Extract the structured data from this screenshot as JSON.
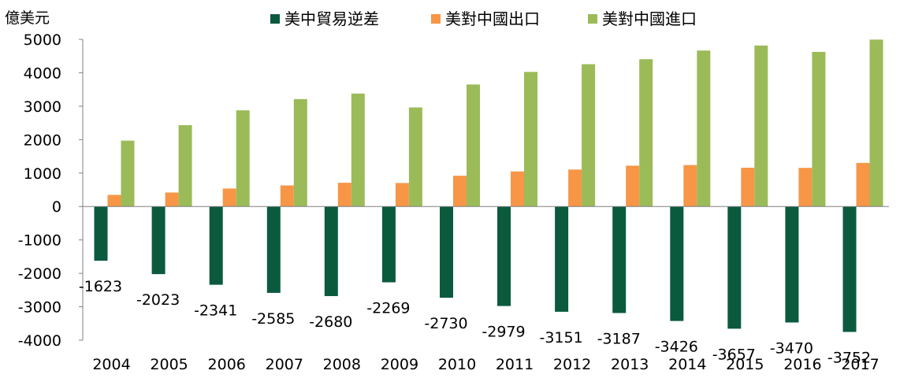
{
  "chart_data": {
    "type": "bar",
    "unit_label": "億美元",
    "categories": [
      "2004",
      "2005",
      "2006",
      "2007",
      "2008",
      "2009",
      "2010",
      "2011",
      "2012",
      "2013",
      "2014",
      "2015",
      "2016",
      "2017"
    ],
    "series": [
      {
        "name": "美中貿易逆差",
        "color": "#0b5a3d",
        "values": [
          -1623,
          -2023,
          -2341,
          -2585,
          -2680,
          -2269,
          -2730,
          -2979,
          -3151,
          -3187,
          -3426,
          -3657,
          -3470,
          -3752
        ],
        "labeled": true
      },
      {
        "name": "美對中國出口",
        "color": "#f79646",
        "values": [
          346,
          418,
          538,
          630,
          710,
          703,
          919,
          1049,
          1106,
          1220,
          1240,
          1160,
          1155,
          1303
        ],
        "labeled": false
      },
      {
        "name": "美對中國進口",
        "color": "#9bbb59",
        "values": [
          1970,
          2434,
          2878,
          3215,
          3378,
          2964,
          3649,
          4028,
          4257,
          4407,
          4666,
          4817,
          4625,
          4993
        ],
        "labeled": false
      }
    ],
    "data_labels": [
      "-1623",
      "-2023",
      "-2341",
      "-2585",
      "-2680",
      "-2269",
      "-2730",
      "-2979",
      "-3151",
      "-3187",
      "-3426",
      "-3657",
      "-3470",
      "-3752"
    ],
    "ylim": [
      -4000,
      5000
    ],
    "yticks": [
      "5000",
      "4000",
      "3000",
      "2000",
      "1000",
      "0",
      "-1000",
      "-2000",
      "-3000",
      "-4000"
    ],
    "grid": false,
    "legend_position": "top"
  }
}
